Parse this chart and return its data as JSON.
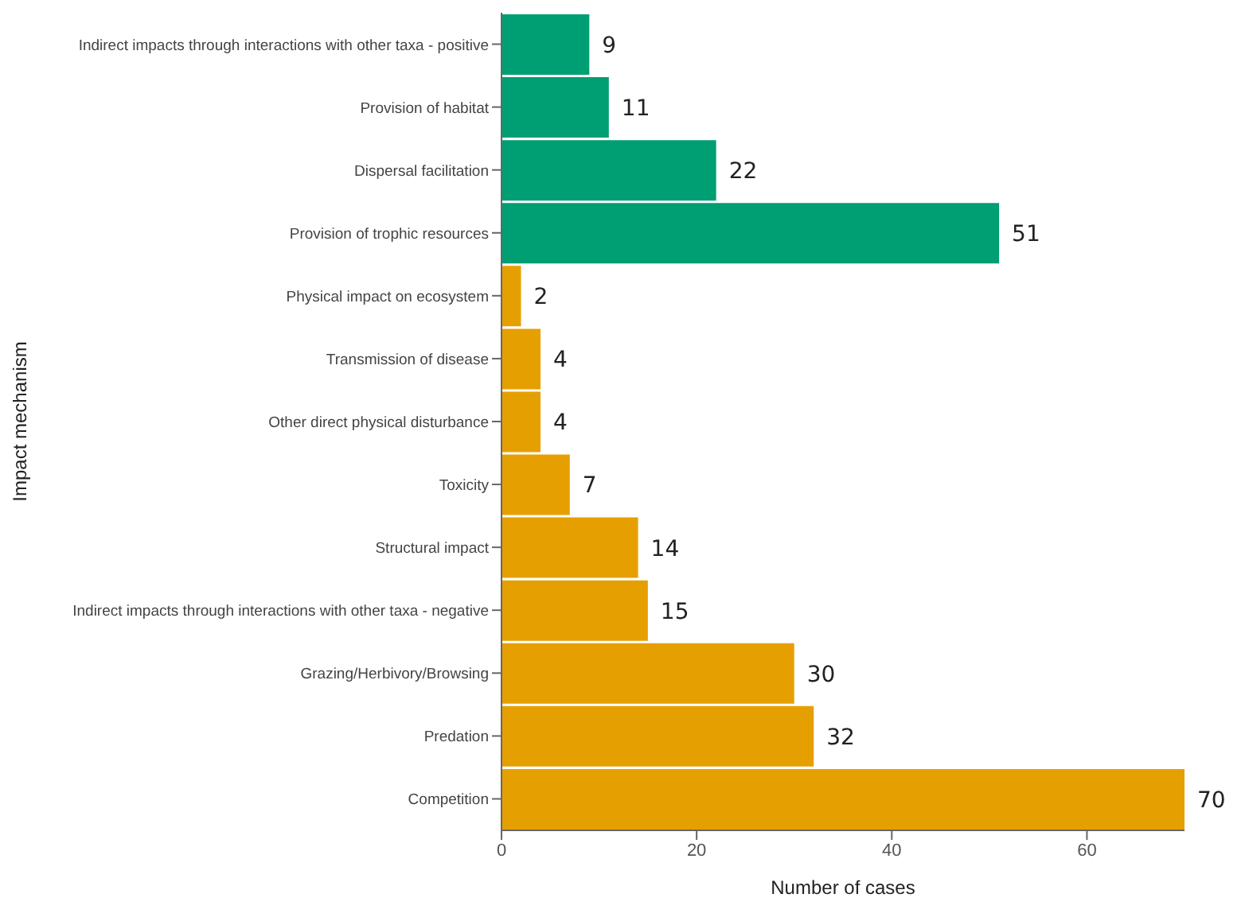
{
  "chart_data": {
    "type": "bar",
    "orientation": "horizontal",
    "xlabel": "Number of cases",
    "ylabel": "Impact mechanism",
    "categories": [
      "Indirect impacts through interactions with other taxa - positive",
      "Provision of habitat",
      "Dispersal facilitation",
      "Provision of trophic resources",
      "Physical impact on ecosystem",
      "Transmission of disease",
      "Other direct physical disturbance",
      "Toxicity",
      "Structural impact",
      "Indirect impacts through interactions with other taxa - negative",
      "Grazing/Herbivory/Browsing",
      "Predation",
      "Competition"
    ],
    "values": [
      9,
      11,
      22,
      51,
      2,
      4,
      4,
      7,
      14,
      15,
      30,
      32,
      70
    ],
    "colors": [
      "#009e73",
      "#009e73",
      "#009e73",
      "#009e73",
      "#e69f00",
      "#e69f00",
      "#e69f00",
      "#e69f00",
      "#e69f00",
      "#e69f00",
      "#e69f00",
      "#e69f00",
      "#e69f00"
    ],
    "xlim": [
      0,
      70
    ],
    "xticks": [
      0,
      20,
      40,
      60
    ],
    "data_labels": true,
    "grid": false,
    "legend": false
  }
}
